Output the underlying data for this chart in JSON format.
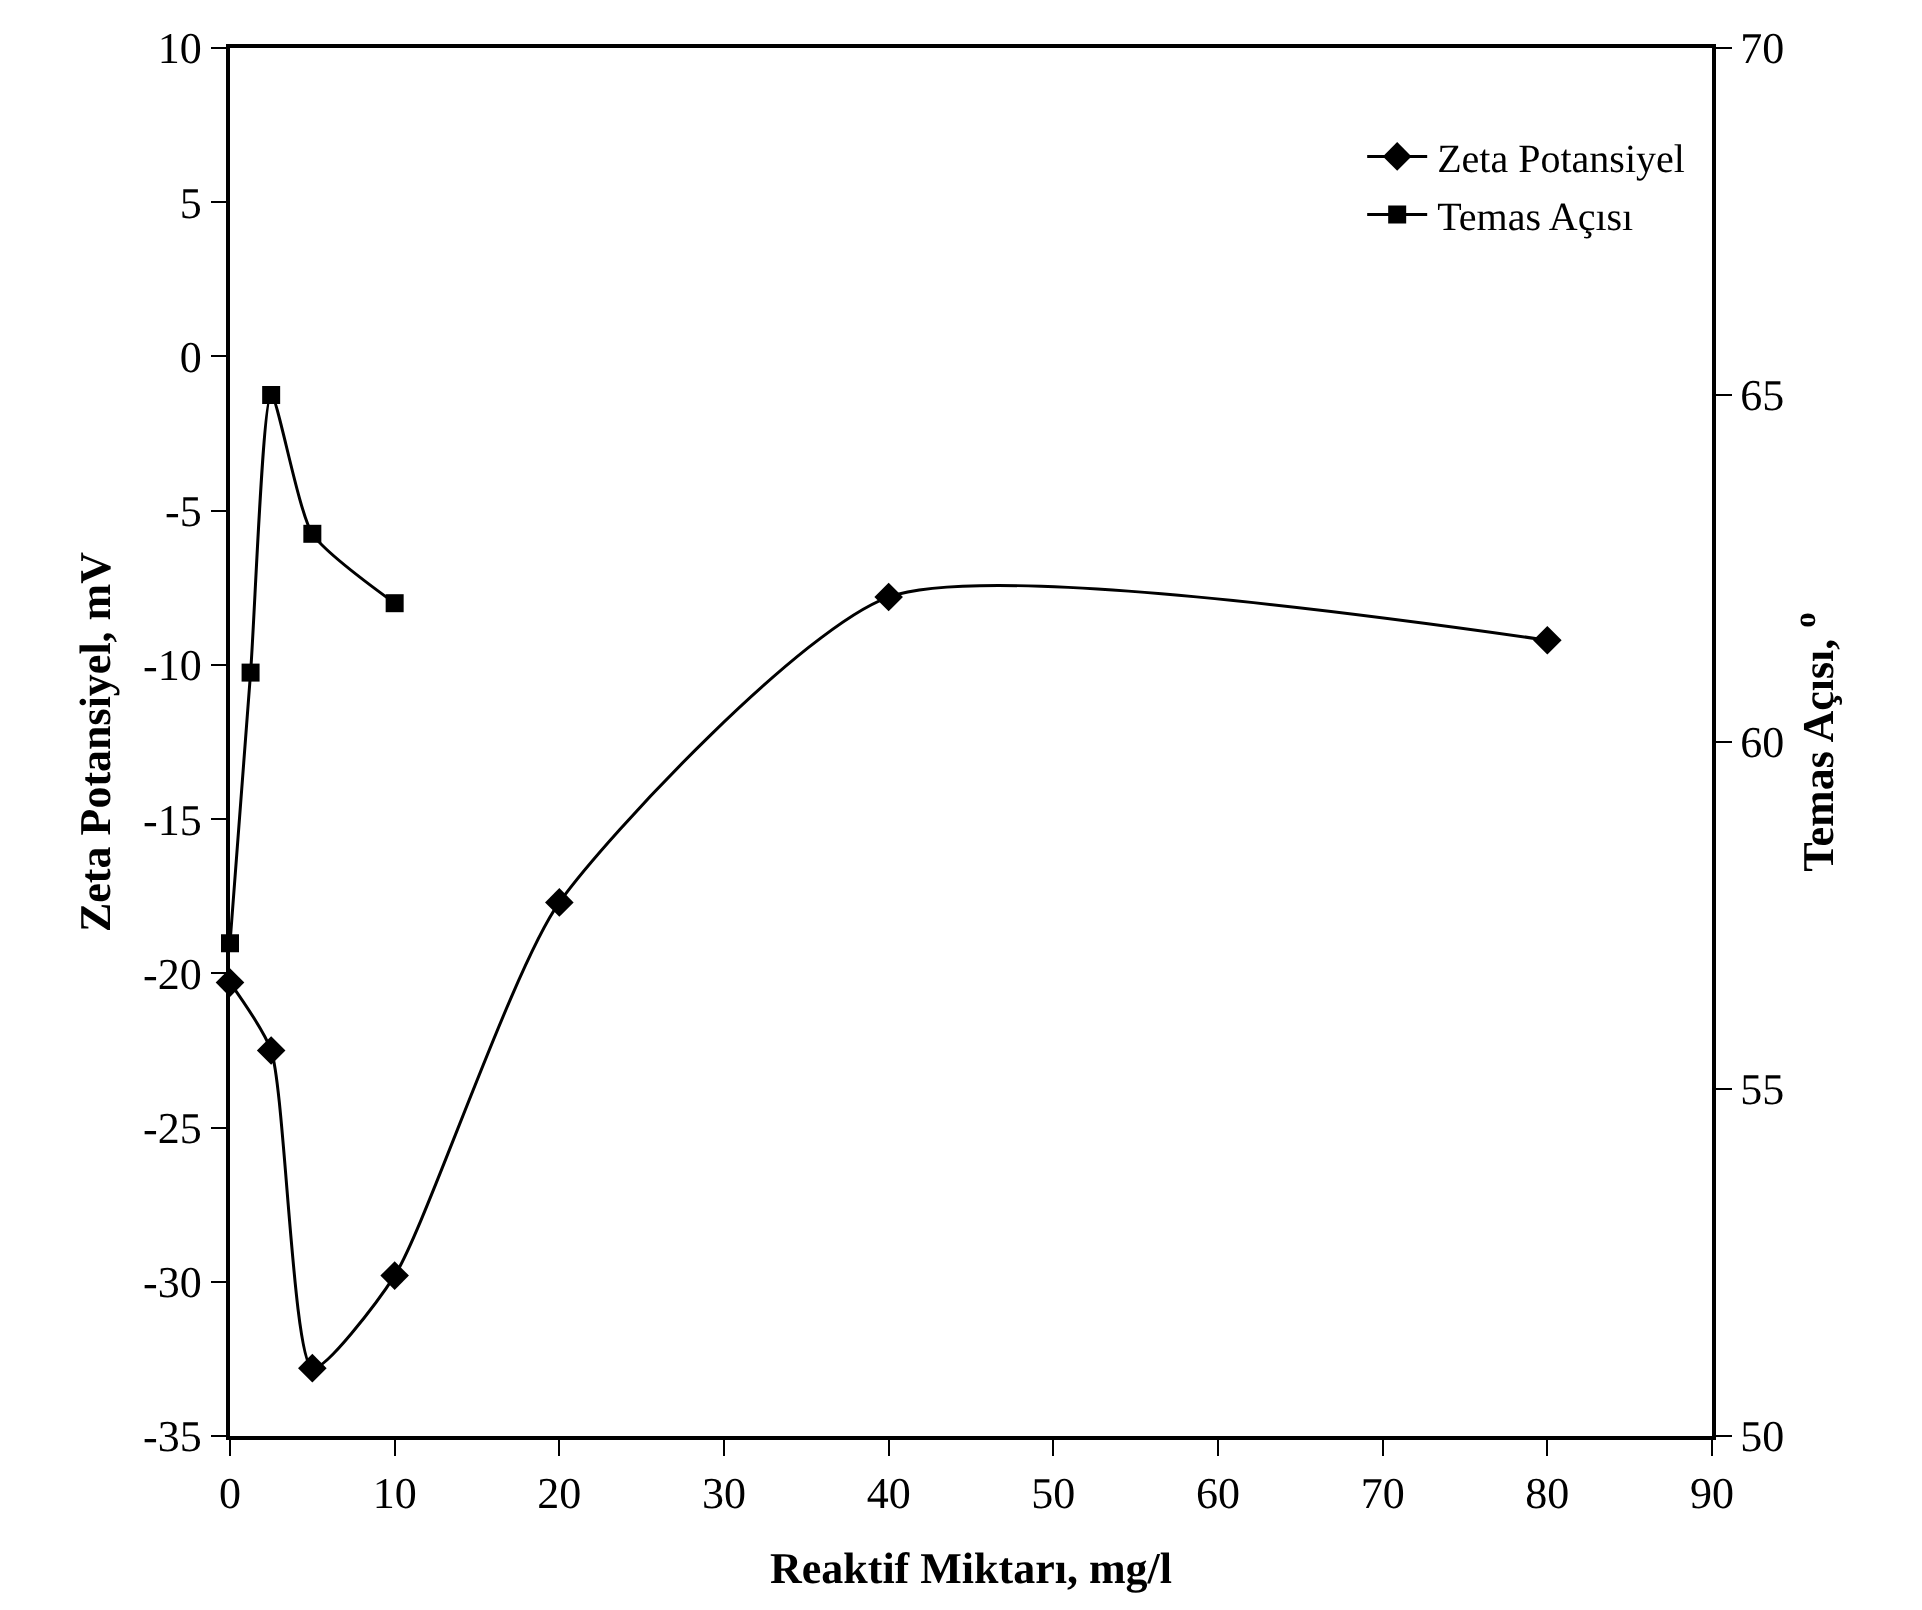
{
  "chart_data": {
    "type": "line",
    "xlabel": "Reaktif Miktarı, mg/l",
    "ylabel": "Zeta Potansiyel, mV",
    "y2label": "Temas Açısı, $^{o}$",
    "series": [
      {
        "name": "Zeta Potansiyel",
        "color": "#000000",
        "marker": "diamond",
        "x": [
          0,
          2.5,
          5,
          10,
          20,
          40,
          80
        ],
        "values": [
          -20.3,
          -22.5,
          -32.8,
          -29.8,
          -17.7,
          -7.8,
          -9.2
        ]
      },
      {
        "name": "Temas Açısı",
        "color": "#000000",
        "marker": "square",
        "axis": "y2",
        "x": [
          0,
          1.25,
          2.5,
          5,
          10
        ],
        "values": [
          57.1,
          61.0,
          65.0,
          63.0,
          62.0
        ]
      }
    ],
    "xlim": [
      0,
      90
    ],
    "xticks": [
      0,
      10,
      20,
      30,
      40,
      50,
      60,
      70,
      80,
      90
    ],
    "ylim": [
      -35,
      10
    ],
    "yticks": [
      -35,
      -30,
      -25,
      -20,
      -15,
      -10,
      -5,
      0,
      5,
      10
    ],
    "y2lim": [
      50,
      70
    ],
    "y2ticks": [
      50,
      55,
      60,
      65,
      70
    ],
    "legend": "top right",
    "line_style": "solid"
  }
}
